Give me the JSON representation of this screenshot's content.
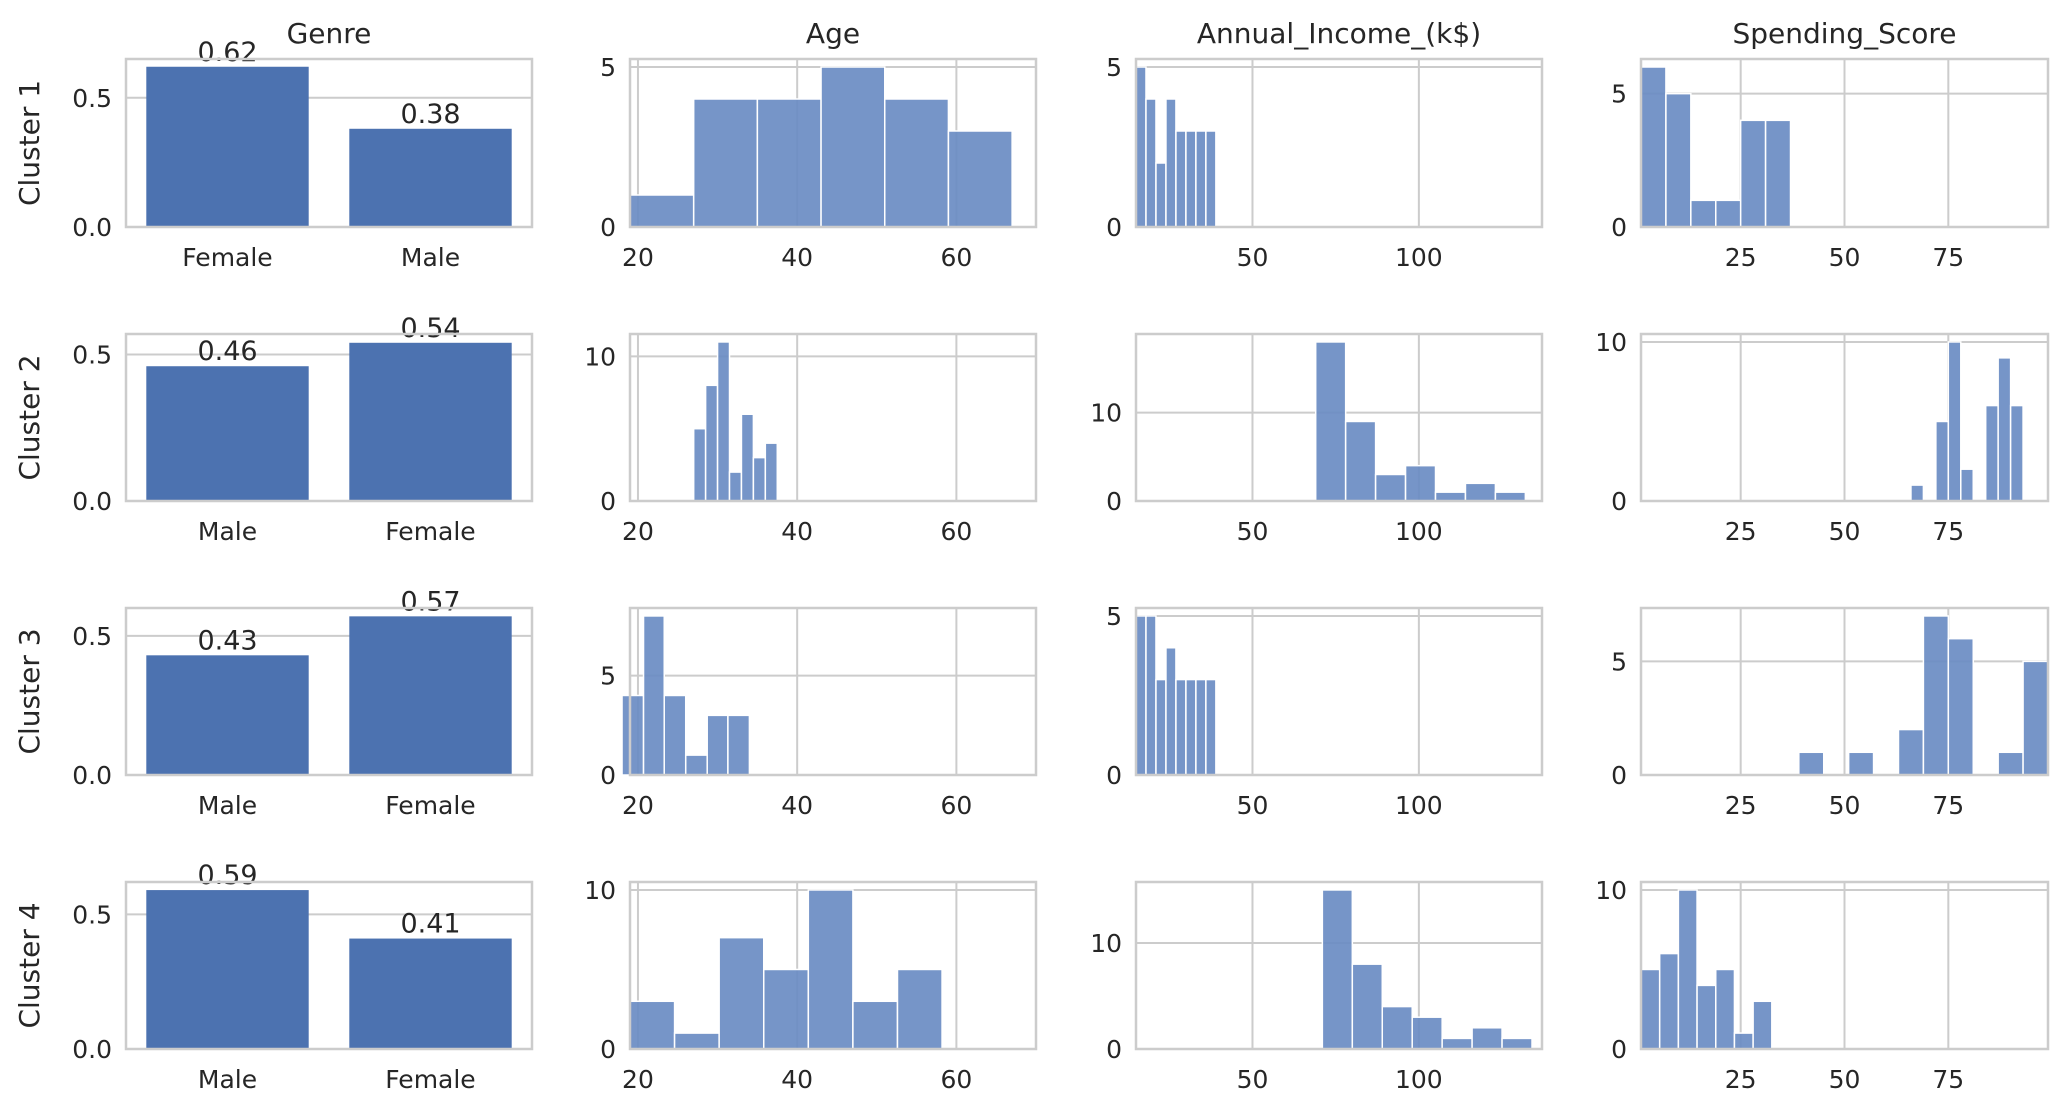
{
  "colors": {
    "bar": "#4c72b0",
    "hist": "#6a8cc3",
    "grid": "#cccccc",
    "frame": "#cccccc",
    "text": "#262626"
  },
  "chart_data": [
    {
      "type": "bar",
      "row": 0,
      "col": 0,
      "column_title": "Genre",
      "row_label": "Cluster 1",
      "categories": [
        "Female",
        "Male"
      ],
      "values": [
        0.62,
        0.38
      ],
      "data_labels": [
        "0.62",
        "0.38"
      ],
      "ylim": [
        0,
        0.65
      ],
      "xlim": [
        -0.5,
        1.5
      ],
      "yticks": [
        0.0,
        0.5
      ],
      "ytick_labels": [
        "0.0",
        "0.5"
      ],
      "grid": true
    },
    {
      "type": "histogram",
      "row": 0,
      "col": 1,
      "column_title": "Age",
      "bin_edges": [
        19,
        27,
        35,
        43,
        51,
        59,
        67
      ],
      "counts": [
        1,
        4,
        4,
        5,
        4,
        3
      ],
      "xlim": [
        19,
        70
      ],
      "ylim": [
        0,
        5.25
      ],
      "xticks": [
        20,
        40,
        60
      ],
      "yticks": [
        0,
        5
      ],
      "grid": true
    },
    {
      "type": "histogram",
      "row": 0,
      "col": 2,
      "column_title": "Annual_Income_(k$)",
      "bin_edges": [
        15,
        18,
        21,
        24,
        27,
        30,
        33,
        36,
        39
      ],
      "counts": [
        5,
        4,
        2,
        4,
        3,
        3,
        3,
        3
      ],
      "xlim": [
        15,
        137
      ],
      "ylim": [
        0,
        5.25
      ],
      "xticks": [
        50,
        100
      ],
      "yticks": [
        0,
        5
      ],
      "grid": true
    },
    {
      "type": "histogram",
      "row": 0,
      "col": 3,
      "column_title": "Spending_Score",
      "bin_edges": [
        1,
        7,
        13,
        19,
        25,
        31,
        37
      ],
      "counts": [
        6,
        5,
        1,
        1,
        4,
        4
      ],
      "xlim": [
        1,
        99
      ],
      "ylim": [
        0,
        6.3
      ],
      "xticks": [
        25,
        50,
        75
      ],
      "yticks": [
        0,
        5
      ],
      "grid": true
    },
    {
      "type": "bar",
      "row": 1,
      "col": 0,
      "row_label": "Cluster 2",
      "categories": [
        "Male",
        "Female"
      ],
      "values": [
        0.46,
        0.54
      ],
      "data_labels": [
        "0.46",
        "0.54"
      ],
      "ylim": [
        0,
        0.57
      ],
      "xlim": [
        -0.5,
        1.5
      ],
      "yticks": [
        0.0,
        0.5
      ],
      "ytick_labels": [
        "0.0",
        "0.5"
      ],
      "grid": true
    },
    {
      "type": "histogram",
      "row": 1,
      "col": 1,
      "bin_edges": [
        27,
        28.5,
        30,
        31.5,
        33,
        34.5,
        36,
        37.5,
        39
      ],
      "counts": [
        5,
        8,
        11,
        2,
        6,
        3,
        4,
        0
      ],
      "xlim": [
        19,
        70
      ],
      "ylim": [
        0,
        11.55
      ],
      "xticks": [
        20,
        40,
        60
      ],
      "yticks": [
        0,
        10
      ],
      "grid": true
    },
    {
      "type": "histogram",
      "row": 1,
      "col": 2,
      "bin_edges": [
        69,
        78,
        87,
        96,
        105,
        114,
        123,
        132,
        137
      ],
      "counts": [
        18,
        9,
        3,
        4,
        1,
        2,
        1,
        0
      ],
      "xlim": [
        15,
        137
      ],
      "ylim": [
        0,
        18.9
      ],
      "xticks": [
        50,
        100
      ],
      "yticks": [
        0,
        10
      ],
      "grid": true
    },
    {
      "type": "histogram",
      "row": 1,
      "col": 3,
      "bin_edges": [
        63,
        66,
        69,
        72,
        75,
        78,
        81,
        84,
        87,
        90,
        93,
        96,
        99
      ],
      "counts": [
        0,
        1,
        0,
        5,
        10,
        2,
        0,
        6,
        9,
        6,
        0,
        0
      ],
      "xlim": [
        1,
        99
      ],
      "ylim": [
        0,
        10.5
      ],
      "xticks": [
        25,
        50,
        75
      ],
      "yticks": [
        0,
        10
      ],
      "grid": true
    },
    {
      "type": "bar",
      "row": 2,
      "col": 0,
      "row_label": "Cluster 3",
      "categories": [
        "Male",
        "Female"
      ],
      "values": [
        0.43,
        0.57
      ],
      "data_labels": [
        "0.43",
        "0.57"
      ],
      "ylim": [
        0,
        0.6
      ],
      "xlim": [
        -0.5,
        1.5
      ],
      "yticks": [
        0.0,
        0.5
      ],
      "ytick_labels": [
        "0.0",
        "0.5"
      ],
      "grid": true
    },
    {
      "type": "histogram",
      "row": 2,
      "col": 1,
      "bin_edges": [
        18,
        20.7,
        23.3,
        26,
        28.7,
        31.3,
        34
      ],
      "counts": [
        4,
        8,
        4,
        1,
        3,
        3
      ],
      "xlim": [
        19,
        70
      ],
      "ylim": [
        0,
        8.4
      ],
      "xticks": [
        20,
        40,
        60
      ],
      "yticks": [
        0,
        5
      ],
      "grid": true
    },
    {
      "type": "histogram",
      "row": 2,
      "col": 2,
      "bin_edges": [
        15,
        18,
        21,
        24,
        27,
        30,
        33,
        36,
        39
      ],
      "counts": [
        5,
        5,
        3,
        4,
        3,
        3,
        3,
        3
      ],
      "xlim": [
        15,
        137
      ],
      "ylim": [
        0,
        5.25
      ],
      "xticks": [
        50,
        100
      ],
      "yticks": [
        0,
        5
      ],
      "grid": true
    },
    {
      "type": "histogram",
      "row": 2,
      "col": 3,
      "bin_edges": [
        39,
        45,
        51,
        57,
        63,
        69,
        75,
        81,
        87,
        93,
        99
      ],
      "counts": [
        1,
        0,
        1,
        0,
        2,
        7,
        6,
        0,
        1,
        5
      ],
      "xlim": [
        1,
        99
      ],
      "ylim": [
        0,
        7.35
      ],
      "xticks": [
        25,
        50,
        75
      ],
      "yticks": [
        0,
        5
      ],
      "grid": true
    },
    {
      "type": "bar",
      "row": 3,
      "col": 0,
      "row_label": "Cluster 4",
      "categories": [
        "Male",
        "Female"
      ],
      "values": [
        0.59,
        0.41
      ],
      "data_labels": [
        "0.59",
        "0.41"
      ],
      "ylim": [
        0,
        0.62
      ],
      "xlim": [
        -0.5,
        1.5
      ],
      "yticks": [
        0.0,
        0.5
      ],
      "ytick_labels": [
        "0.0",
        "0.5"
      ],
      "grid": true
    },
    {
      "type": "histogram",
      "row": 3,
      "col": 1,
      "bin_edges": [
        19,
        24.6,
        30.2,
        35.8,
        41.4,
        47,
        52.6,
        58.2
      ],
      "counts": [
        3,
        1,
        7,
        5,
        10,
        3,
        5
      ],
      "xlim": [
        19,
        70
      ],
      "ylim": [
        0,
        10.5
      ],
      "xticks": [
        20,
        40,
        60
      ],
      "yticks": [
        0,
        10
      ],
      "grid": true
    },
    {
      "type": "histogram",
      "row": 3,
      "col": 2,
      "bin_edges": [
        71,
        80,
        89,
        98,
        107,
        116,
        125,
        134,
        137
      ],
      "counts": [
        15,
        8,
        4,
        3,
        1,
        2,
        1,
        0
      ],
      "xlim": [
        15,
        137
      ],
      "ylim": [
        0,
        15.75
      ],
      "xticks": [
        50,
        100
      ],
      "yticks": [
        0,
        10
      ],
      "grid": true
    },
    {
      "type": "histogram",
      "row": 3,
      "col": 3,
      "bin_edges": [
        1,
        5.5,
        10,
        14.5,
        19,
        23.5,
        28,
        32.5,
        37
      ],
      "counts": [
        5,
        6,
        10,
        4,
        5,
        1,
        3,
        0
      ],
      "xlim": [
        1,
        99
      ],
      "ylim": [
        0,
        10.5
      ],
      "xticks": [
        25,
        50,
        75
      ],
      "yticks": [
        0,
        10
      ],
      "grid": true
    }
  ]
}
